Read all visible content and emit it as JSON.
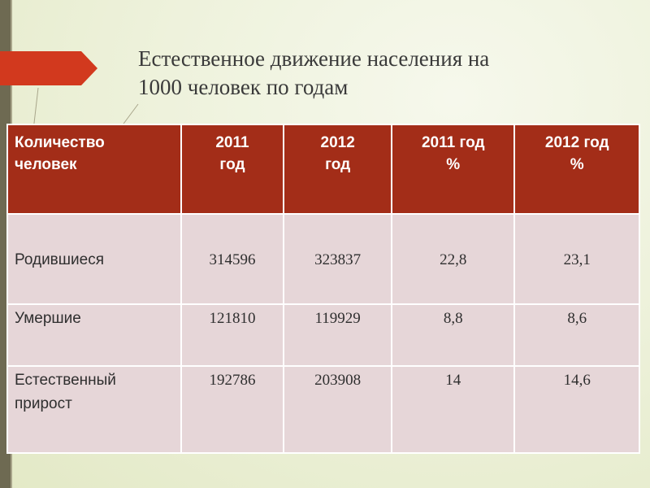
{
  "slide": {
    "title_line1": "Естественное движение населения на",
    "title_line2": "1000 человек по годам"
  },
  "table": {
    "headers": [
      [
        "Количество",
        "человек"
      ],
      [
        "2011",
        "год"
      ],
      [
        "2012",
        "год"
      ],
      [
        "2011 год",
        "%"
      ],
      [
        "2012 год",
        "%"
      ]
    ],
    "rows": [
      {
        "label": [
          "Родившиеся"
        ],
        "values": [
          "314596",
          "323837",
          "22,8",
          "23,1"
        ]
      },
      {
        "label": [
          "Умершие"
        ],
        "values": [
          "121810",
          "119929",
          "8,8",
          "8,6"
        ]
      },
      {
        "label": [
          "Естественный",
          "прирост"
        ],
        "values": [
          "192786",
          "203908",
          "14",
          "14,6"
        ]
      }
    ]
  },
  "colors": {
    "header_bg": "#a32d18",
    "cell_bg": "#e6d6d8",
    "accent_arrow": "#d2391e",
    "sidebar": "#6e6a52"
  },
  "icons": [
    "arrow-pointer-icon"
  ]
}
